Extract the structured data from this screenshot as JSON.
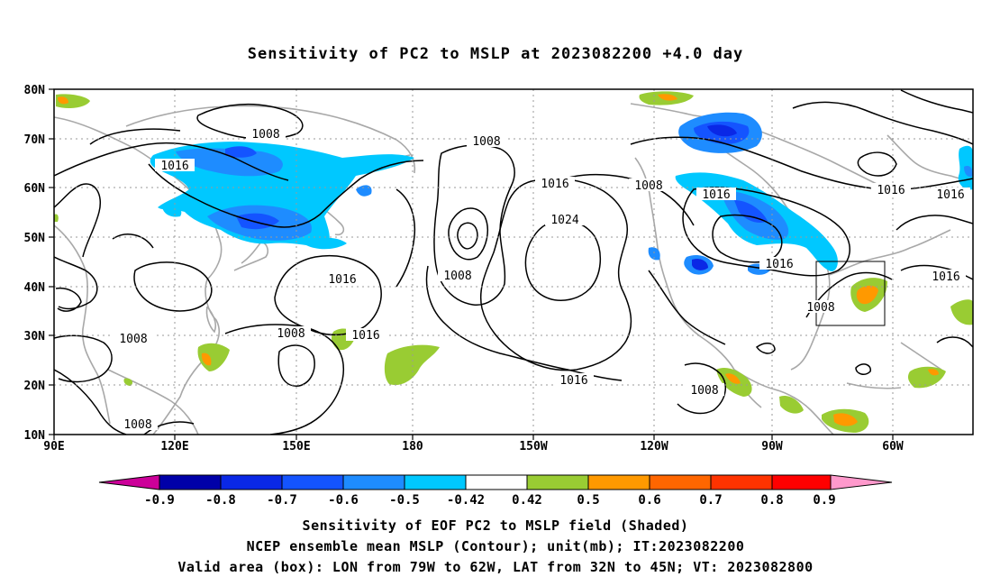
{
  "title": "Sensitivity of PC2 to MSLP at 2023082200 +4.0 day",
  "map": {
    "lon_labels": [
      "90E",
      "120E",
      "150E",
      "180",
      "150W",
      "120W",
      "90W",
      "60W"
    ],
    "lat_labels": [
      "10N",
      "20N",
      "30N",
      "40N",
      "50N",
      "60N",
      "70N",
      "80N"
    ],
    "contour_labels": [
      "1008",
      "1016",
      "1008",
      "1016",
      "1024",
      "1008",
      "1008",
      "1016",
      "1016",
      "1016",
      "1008",
      "1016",
      "1016",
      "1008",
      "1008",
      "1008",
      "1016",
      "1016",
      "1008"
    ],
    "valid_box": {
      "lon_from": "79W",
      "lon_to": "62W",
      "lat_from": "32N",
      "lat_to": "45N"
    }
  },
  "colorbar": {
    "labels": [
      "-0.9",
      "-0.8",
      "-0.7",
      "-0.6",
      "-0.5",
      "-0.42",
      "0.42",
      "0.5",
      "0.6",
      "0.7",
      "0.8",
      "0.9"
    ],
    "colors": [
      "#0000a8",
      "#0a28e6",
      "#1454ff",
      "#1e8cff",
      "#00c8ff",
      "#ffffff",
      "#99cc33",
      "#ff9900",
      "#ff6600",
      "#ff3300",
      "#ff0000"
    ],
    "low_triangle": "#cc0099",
    "high_triangle": "#ff99cc"
  },
  "captions": {
    "line1": "Sensitivity of EOF PC2 to MSLP field (Shaded)",
    "line2": "NCEP ensemble mean MSLP (Contour); unit(mb); IT:2023082200",
    "line3": "Valid area (box): LON from 79W to 62W, LAT from 32N to 45N; VT: 2023082800"
  }
}
